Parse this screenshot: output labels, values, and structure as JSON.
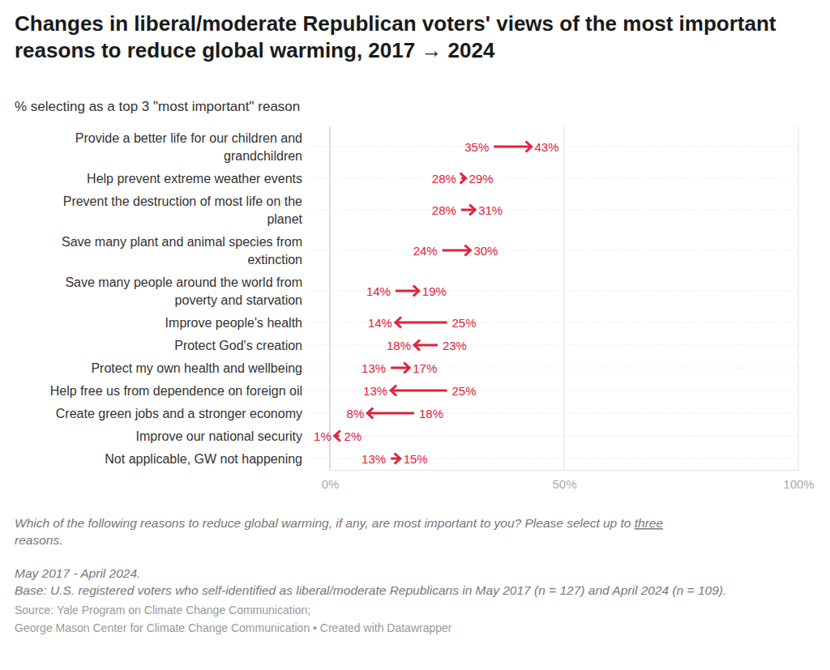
{
  "chart_data": {
    "type": "arrow",
    "title": "Changes in liberal/moderate Republican voters' views of the most important reasons to reduce global warming, 2017 → 2024",
    "subtitle": "% selecting as a top 3 \"most important\" reason",
    "orientation": "horizontal",
    "grid": true,
    "data_labels": true,
    "color": "#e0213b",
    "categories": [
      "Provide a better life for our children and grandchildren",
      "Help prevent extreme weather events",
      "Prevent the destruction of most life on the planet",
      "Save many plant and animal species from extinction",
      "Save many people around the world from poverty and starvation",
      "Improve people's health",
      "Protect God's creation",
      "Protect my own health and wellbeing",
      "Help free us from dependence on foreign oil",
      "Create green jobs and a stronger economy",
      "Improve our national security",
      "Not applicable, GW not happening"
    ],
    "series": [
      {
        "values": [
          35,
          28,
          28,
          24,
          14,
          25,
          23,
          13,
          25,
          18,
          2,
          13
        ],
        "value_labels": [
          "35%",
          "28%",
          "28%",
          "24%",
          "14%",
          "25%",
          "23%",
          "13%",
          "25%",
          "18%",
          "2%",
          "13%"
        ]
      },
      {
        "values": [
          43,
          29,
          31,
          30,
          19,
          14,
          18,
          17,
          13,
          8,
          1,
          15
        ],
        "value_labels": [
          "43%",
          "29%",
          "31%",
          "30%",
          "19%",
          "14%",
          "18%",
          "17%",
          "13%",
          "8%",
          "1%",
          "15%"
        ]
      }
    ],
    "xlim": [
      0,
      100
    ],
    "xticks": [
      {
        "value": 0,
        "label": "0%"
      },
      {
        "value": 50,
        "label": "50%"
      },
      {
        "value": 100,
        "label": "100%"
      }
    ],
    "question": [
      [
        "Which of the following reasons to reduce global warming, if any, are most important to you? Please select up to ",
        "three"
      ],
      [
        "reasons."
      ]
    ],
    "notes": [
      "May 2017 - April 2024.",
      "Base: U.S. registered voters who self-identified as liberal/moderate Republicans in May 2017 (n = 127) and April 2024 (n = 109)."
    ],
    "source": [
      "Source: Yale Program on Climate Change Communication;",
      "George Mason Center for Climate Change Communication • Created with Datawrapper"
    ]
  }
}
